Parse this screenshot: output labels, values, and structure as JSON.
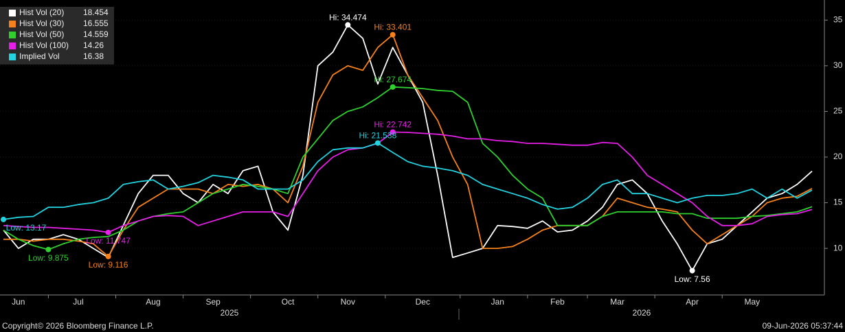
{
  "chart_data": {
    "type": "line",
    "categories": [
      null,
      "Jun",
      null,
      null,
      null,
      "Jul",
      null,
      null,
      null,
      null,
      "Aug",
      null,
      null,
      null,
      "Sep",
      null,
      null,
      null,
      null,
      "Oct",
      null,
      null,
      null,
      "Nov",
      null,
      null,
      null,
      null,
      "Dec",
      null,
      null,
      null,
      null,
      "Jan",
      null,
      null,
      null,
      "Feb",
      null,
      null,
      null,
      "Mar",
      null,
      null,
      null,
      null,
      "Apr",
      null,
      null,
      null,
      "May",
      null,
      null,
      null,
      null
    ],
    "x_groups": [
      "2025",
      "2026"
    ],
    "ylim": [
      4.9,
      37.2
    ],
    "yticks": [
      10,
      15,
      20,
      25,
      30,
      35
    ],
    "series": [
      {
        "name": "Hist Vol (20)",
        "color": "#ffffff",
        "values": [
          12,
          10,
          11,
          11,
          11.5,
          11,
          10,
          9,
          12.5,
          16,
          18,
          18,
          16,
          15,
          17,
          16,
          18.5,
          19,
          14,
          12,
          18,
          30,
          31.5,
          34.474,
          33,
          28,
          32,
          29,
          26,
          18,
          9,
          9.5,
          10,
          12.5,
          12.4,
          12.2,
          13,
          11.8,
          12,
          13,
          14.5,
          17,
          17.5,
          16,
          13,
          10.5,
          7.56,
          10.5,
          11,
          12.5,
          14,
          15.5,
          16,
          17,
          18.454
        ],
        "annotations": [
          {
            "text": "Hi: 34.474",
            "value": 34.474
          },
          {
            "text": "Low: 7.56",
            "value": 7.56
          }
        ]
      },
      {
        "name": "Hist Vol (30)",
        "color": "#f7821b",
        "values": [
          11,
          11,
          10.8,
          11,
          11,
          10.8,
          10.5,
          9.116,
          12,
          14.5,
          15.5,
          16.5,
          16.5,
          16.5,
          16,
          17,
          16.8,
          17,
          16.5,
          15,
          19,
          26,
          29,
          30,
          29.5,
          32,
          33.401,
          29,
          26.5,
          24,
          20,
          17,
          10,
          10,
          10.2,
          11,
          12,
          12.5,
          12.5,
          12.5,
          13.5,
          15.5,
          15,
          14.5,
          14.3,
          14,
          12,
          10.5,
          11.5,
          12.5,
          13.5,
          15,
          15.5,
          15.7,
          16.555
        ],
        "annotations": [
          {
            "text": "Hi: 33.401",
            "value": 33.401
          },
          {
            "text": "Low: 9.116",
            "value": 9.116
          }
        ]
      },
      {
        "name": "Hist Vol (50)",
        "color": "#2fd12f",
        "values": [
          12,
          11,
          10.3,
          9.875,
          10.5,
          11,
          11.2,
          11.3,
          12,
          13,
          13.5,
          13.8,
          14,
          15,
          16,
          16.5,
          17,
          16.8,
          16.5,
          16,
          20,
          22,
          24,
          25,
          25.5,
          26.5,
          27.674,
          27.6,
          27.5,
          27.3,
          27.2,
          26,
          21.5,
          20,
          18,
          16.5,
          15.5,
          12.5,
          12.5,
          12.5,
          13.5,
          14,
          14,
          14,
          14,
          13.8,
          13.8,
          13.3,
          13.3,
          13.3,
          13.5,
          13.6,
          13.8,
          14,
          14.559
        ],
        "annotations": [
          {
            "text": "Hi: 27.674",
            "value": 27.674
          },
          {
            "text": "Low: 9.875",
            "value": 9.875
          }
        ]
      },
      {
        "name": "Hist Vol (100)",
        "color": "#e81fe8",
        "values": [
          12.5,
          12.4,
          12.3,
          12.3,
          12.2,
          12.1,
          12,
          11.747,
          12.5,
          13,
          13.5,
          13.6,
          13.5,
          12.5,
          13,
          13.5,
          14,
          14,
          14,
          13.5,
          16,
          18.5,
          20,
          20.8,
          21,
          21.5,
          22.742,
          22.7,
          22.6,
          22.5,
          22.3,
          22,
          22,
          21.8,
          21.7,
          21.5,
          21.5,
          21.4,
          21.3,
          21.3,
          21.6,
          21.5,
          20,
          18,
          17,
          16,
          15,
          13.5,
          12.5,
          12.5,
          12.7,
          13.5,
          13.7,
          13.8,
          14.26
        ],
        "annotations": [
          {
            "text": "Hi: 22.742",
            "value": 22.742
          },
          {
            "text": "Low: 11.747",
            "value": 11.747
          }
        ]
      },
      {
        "name": "Implied Vol",
        "color": "#22d3e0",
        "values": [
          13.17,
          13.4,
          13.5,
          14.5,
          14.5,
          14.8,
          15,
          15.5,
          17,
          17.3,
          17.5,
          16.5,
          16.8,
          17.2,
          18,
          17.8,
          17.5,
          16.5,
          16.5,
          16.5,
          17.5,
          19.5,
          20.8,
          21,
          21,
          21.538,
          20.5,
          19.5,
          19,
          18.8,
          18.5,
          18,
          17,
          16.5,
          16,
          15.5,
          14.8,
          14.3,
          14.5,
          15.5,
          17,
          17.5,
          16,
          16,
          15.5,
          15,
          15.5,
          15.8,
          15.8,
          16,
          16.5,
          15.5,
          16.5,
          15.5,
          16.38
        ],
        "annotations": [
          {
            "text": "Hi: 21.538",
            "value": 21.538
          },
          {
            "text": "Low: 13.17",
            "value": 13.17
          }
        ]
      }
    ],
    "footer": {
      "left": "Copyright© 2026 Bloomberg Finance L.P.",
      "right": "09-Jun-2026 05:37:44"
    }
  }
}
